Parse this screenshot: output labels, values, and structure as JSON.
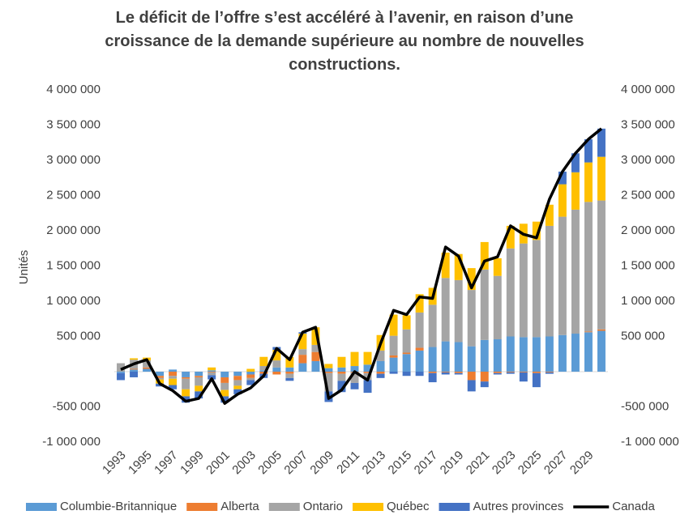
{
  "chart_data": {
    "type": "bar",
    "title": "Le déficit de l’offre s’est accéléré à l’avenir, en raison d’une croissance de la demande supérieure au nombre de nouvelles constructions.",
    "y_label": "Unités",
    "categories": [
      "1993",
      null,
      "1995",
      null,
      "1997",
      null,
      "1999",
      null,
      "2001",
      null,
      "2003",
      null,
      "2005",
      null,
      "2007",
      null,
      "2009",
      null,
      "2011",
      null,
      "2013",
      null,
      "2015",
      null,
      "2017",
      null,
      "2019",
      null,
      "2021",
      null,
      "2023",
      null,
      "2025",
      null,
      "2027",
      null,
      "2029",
      null
    ],
    "ylim": [
      -1000000,
      4000000
    ],
    "yticks": [
      {
        "value": -1000000,
        "label": "-1 000 000"
      },
      {
        "value": -500000,
        "label": "-500 000"
      },
      {
        "value": 500000,
        "label": "500 000"
      },
      {
        "value": 1000000,
        "label": "1 000 000"
      },
      {
        "value": 1500000,
        "label": "1 500 000"
      },
      {
        "value": 2000000,
        "label": "2 000 000"
      },
      {
        "value": 2500000,
        "label": "2 500 000"
      },
      {
        "value": 3000000,
        "label": "3 000 000"
      },
      {
        "value": 3500000,
        "label": "3 500 000"
      },
      {
        "value": 4000000,
        "label": "4 000 000"
      }
    ],
    "y2lim": [
      -1000000,
      4000000
    ],
    "y2ticks": [
      {
        "value": -1000000,
        "label": "-1 000 000"
      },
      {
        "value": -500000,
        "label": "-500 000"
      },
      {
        "value": 500000,
        "label": "500 000"
      },
      {
        "value": 1000000,
        "label": "1 000 000"
      },
      {
        "value": 1500000,
        "label": "1 500 000"
      },
      {
        "value": 2000000,
        "label": "2 000 000"
      },
      {
        "value": 2500000,
        "label": "2 500 000"
      },
      {
        "value": 3000000,
        "label": "3 000 000"
      },
      {
        "value": 3500000,
        "label": "3 500 000"
      },
      {
        "value": 4000000,
        "label": "4 000 000"
      }
    ],
    "stacked": true,
    "legend": "bottom",
    "series": [
      {
        "name": "Columbie-Britannique",
        "color": "#5b9bd5",
        "values": [
          -20000,
          30000,
          40000,
          -60000,
          30000,
          -80000,
          -60000,
          20000,
          -80000,
          -60000,
          -40000,
          20000,
          60000,
          60000,
          120000,
          150000,
          50000,
          60000,
          80000,
          100000,
          150000,
          200000,
          250000,
          300000,
          350000,
          430000,
          420000,
          360000,
          450000,
          460000,
          500000,
          490000,
          490000,
          500000,
          520000,
          540000,
          560000,
          580000
        ]
      },
      {
        "name": "Alberta",
        "color": "#ed7d31",
        "values": [
          0,
          10000,
          20000,
          -30000,
          -60000,
          -20000,
          -20000,
          -10000,
          -80000,
          -60000,
          -50000,
          -30000,
          -40000,
          -30000,
          120000,
          130000,
          -20000,
          -30000,
          -10000,
          -20000,
          -30000,
          30000,
          20000,
          40000,
          -20000,
          -10000,
          -20000,
          -120000,
          -140000,
          -20000,
          -10000,
          -10000,
          -20000,
          -10000,
          0,
          0,
          10000,
          20000
        ]
      },
      {
        "name": "Ontario",
        "color": "#a5a5a5",
        "values": [
          120000,
          130000,
          100000,
          -20000,
          -40000,
          -150000,
          -120000,
          -40000,
          -100000,
          -80000,
          -30000,
          60000,
          100000,
          -60000,
          80000,
          100000,
          -260000,
          -100000,
          -150000,
          -100000,
          150000,
          280000,
          330000,
          500000,
          600000,
          900000,
          880000,
          800000,
          1000000,
          900000,
          1250000,
          1330000,
          1380000,
          1570000,
          1680000,
          1760000,
          1840000,
          1830000
        ]
      },
      {
        "name": "Québec",
        "color": "#ffc000",
        "values": [
          0,
          20000,
          40000,
          -60000,
          -90000,
          -100000,
          -80000,
          40000,
          -90000,
          -50000,
          40000,
          130000,
          150000,
          150000,
          220000,
          250000,
          60000,
          150000,
          200000,
          180000,
          220000,
          300000,
          200000,
          260000,
          240000,
          360000,
          370000,
          310000,
          390000,
          250000,
          320000,
          280000,
          260000,
          300000,
          460000,
          530000,
          560000,
          620000
        ]
      },
      {
        "name": "Autres provinces",
        "color": "#4472c4",
        "values": [
          -100000,
          -80000,
          0,
          -40000,
          -60000,
          -90000,
          -100000,
          -60000,
          -90000,
          -70000,
          -70000,
          -60000,
          40000,
          -40000,
          20000,
          0,
          -150000,
          -160000,
          -90000,
          -180000,
          -60000,
          -30000,
          -60000,
          -60000,
          -130000,
          -30000,
          -20000,
          -160000,
          -80000,
          -20000,
          -20000,
          -130000,
          -200000,
          -20000,
          180000,
          270000,
          330000,
          400000
        ]
      },
      {
        "name": "Canada",
        "color": "#000000",
        "type": "line",
        "values": [
          30000,
          110000,
          170000,
          -170000,
          -270000,
          -420000,
          -380000,
          -100000,
          -450000,
          -320000,
          -230000,
          -60000,
          330000,
          170000,
          560000,
          630000,
          -380000,
          -260000,
          0,
          -120000,
          400000,
          870000,
          810000,
          1060000,
          1040000,
          1770000,
          1640000,
          1190000,
          1570000,
          1630000,
          2070000,
          1950000,
          1900000,
          2450000,
          2840000,
          3100000,
          3300000,
          3450000
        ]
      }
    ]
  }
}
